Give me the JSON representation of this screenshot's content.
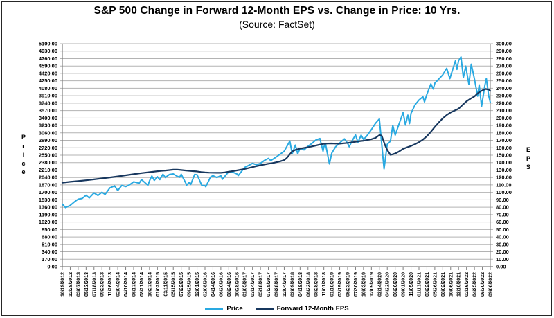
{
  "colors": {
    "price_line": "#29A9E1",
    "eps_line": "#17375E",
    "gridline": "#b3b3b3",
    "axis_line": "#7f7f7f",
    "text": "#000000",
    "border": "#262626",
    "background": "#ffffff"
  },
  "chart_data": {
    "type": "line",
    "title": "S&P 500 Change in Forward 12-Month EPS vs. Change in Price: 10 Yrs.",
    "subtitle": "(Source: FactSet)",
    "grid": true,
    "legend_position": "bottom",
    "left_axis": {
      "label": "Price",
      "min": 0,
      "max": 5100,
      "step": 170
    },
    "right_axis": {
      "label": "EPS",
      "min": 0,
      "max": 300,
      "step": 10
    },
    "x_labels": [
      "10/19/2012",
      "12/28/2012",
      "03/07/2013",
      "05/13/2013",
      "07/18/2013",
      "09/23/2013",
      "11/26/2013",
      "02/04/2014",
      "04/10/2014",
      "06/17/2014",
      "08/21/2014",
      "10/27/2014",
      "01/02/2015",
      "03/11/2015",
      "05/15/2015",
      "07/22/2015",
      "09/25/2015",
      "12/01/2015",
      "02/08/2016",
      "04/14/2016",
      "06/20/2016",
      "08/24/2016",
      "10/28/2016",
      "01/05/2017",
      "03/14/2017",
      "05/18/2017",
      "07/25/2017",
      "09/28/2017",
      "12/04/2017",
      "02/09/2018",
      "04/18/2018",
      "06/22/2018",
      "08/28/2018",
      "11/01/2018",
      "01/10/2019",
      "03/19/2019",
      "05/23/2019",
      "07/30/2019",
      "10/03/2019",
      "12/09/2019",
      "02/14/2020",
      "04/22/2020",
      "06/26/2020",
      "09/01/2020",
      "11/05/2020",
      "01/13/2021",
      "03/22/2021",
      "05/26/2021",
      "08/02/2021",
      "10/06/2021",
      "12/10/2021",
      "02/16/2022",
      "04/25/2022",
      "06/30/2022",
      "09/06/2022"
    ],
    "series": [
      {
        "name": "Price",
        "axis": "left",
        "color": "#29A9E1",
        "width": 2,
        "points": [
          [
            0,
            1433
          ],
          [
            0.4,
            1353
          ],
          [
            1,
            1402
          ],
          [
            1.5,
            1480
          ],
          [
            2,
            1544
          ],
          [
            2.5,
            1560
          ],
          [
            3,
            1634
          ],
          [
            3.4,
            1573
          ],
          [
            4,
            1689
          ],
          [
            4.5,
            1630
          ],
          [
            5,
            1702
          ],
          [
            5.4,
            1655
          ],
          [
            6,
            1803
          ],
          [
            6.6,
            1848
          ],
          [
            7,
            1742
          ],
          [
            7.5,
            1860
          ],
          [
            8,
            1833
          ],
          [
            8.5,
            1875
          ],
          [
            9,
            1942
          ],
          [
            9.4,
            1925
          ],
          [
            9.7,
            1910
          ],
          [
            10,
            1992
          ],
          [
            10.8,
            1862
          ],
          [
            11,
            1962
          ],
          [
            11.3,
            2075
          ],
          [
            11.6,
            1973
          ],
          [
            12,
            2058
          ],
          [
            12.3,
            1993
          ],
          [
            12.7,
            2115
          ],
          [
            13,
            2040
          ],
          [
            13.5,
            2108
          ],
          [
            14,
            2123
          ],
          [
            14.4,
            2077
          ],
          [
            14.8,
            2046
          ],
          [
            15,
            2114
          ],
          [
            15.7,
            1868
          ],
          [
            16,
            1931
          ],
          [
            16.2,
            1882
          ],
          [
            16.7,
            2110
          ],
          [
            17,
            2103
          ],
          [
            17.6,
            1859
          ],
          [
            18,
            1853
          ],
          [
            18.1,
            1829
          ],
          [
            18.7,
            2050
          ],
          [
            19,
            2083
          ],
          [
            19.5,
            2040
          ],
          [
            20,
            2083
          ],
          [
            20.2,
            2001
          ],
          [
            21,
            2175
          ],
          [
            21.5,
            2160
          ],
          [
            22,
            2126
          ],
          [
            22.2,
            2085
          ],
          [
            23,
            2269
          ],
          [
            23.5,
            2316
          ],
          [
            24,
            2365
          ],
          [
            24.5,
            2329
          ],
          [
            25,
            2365
          ],
          [
            25.5,
            2430
          ],
          [
            26,
            2477
          ],
          [
            26.3,
            2426
          ],
          [
            27,
            2510
          ],
          [
            27.5,
            2575
          ],
          [
            28,
            2640
          ],
          [
            28.7,
            2873
          ],
          [
            29,
            2581
          ],
          [
            29.4,
            2780
          ],
          [
            29.7,
            2582
          ],
          [
            30,
            2708
          ],
          [
            30.5,
            2670
          ],
          [
            31,
            2755
          ],
          [
            31.5,
            2821
          ],
          [
            32,
            2898
          ],
          [
            32.5,
            2931
          ],
          [
            32.9,
            2641
          ],
          [
            33,
            2740
          ],
          [
            33.2,
            2814
          ],
          [
            33.7,
            2351
          ],
          [
            34,
            2597
          ],
          [
            34.5,
            2745
          ],
          [
            35,
            2832
          ],
          [
            35.6,
            2924
          ],
          [
            36,
            2822
          ],
          [
            36.2,
            2744
          ],
          [
            36.6,
            2890
          ],
          [
            37,
            3013
          ],
          [
            37.3,
            2845
          ],
          [
            37.7,
            3007
          ],
          [
            38,
            2911
          ],
          [
            38.4,
            2986
          ],
          [
            39,
            3136
          ],
          [
            39.5,
            3275
          ],
          [
            40,
            3380
          ],
          [
            40.6,
            2237
          ],
          [
            41,
            2799
          ],
          [
            41.4,
            2870
          ],
          [
            41.7,
            3232
          ],
          [
            42,
            3009
          ],
          [
            42.5,
            3270
          ],
          [
            43,
            3527
          ],
          [
            43.3,
            3237
          ],
          [
            43.6,
            3465
          ],
          [
            43.8,
            3271
          ],
          [
            44,
            3510
          ],
          [
            44.5,
            3700
          ],
          [
            45,
            3810
          ],
          [
            45.5,
            3886
          ],
          [
            45.7,
            3768
          ],
          [
            46,
            3941
          ],
          [
            46.5,
            4180
          ],
          [
            46.8,
            4063
          ],
          [
            47,
            4196
          ],
          [
            47.5,
            4290
          ],
          [
            48,
            4387
          ],
          [
            48.5,
            4537
          ],
          [
            48.9,
            4300
          ],
          [
            49,
            4364
          ],
          [
            49.6,
            4705
          ],
          [
            49.8,
            4513
          ],
          [
            50,
            4712
          ],
          [
            50.3,
            4797
          ],
          [
            50.6,
            4326
          ],
          [
            50.9,
            4587
          ],
          [
            51,
            4475
          ],
          [
            51.3,
            4171
          ],
          [
            51.6,
            4631
          ],
          [
            52,
            4296
          ],
          [
            52.4,
            3901
          ],
          [
            52.6,
            4158
          ],
          [
            52.9,
            3667
          ],
          [
            53,
            3785
          ],
          [
            53.3,
            4130
          ],
          [
            53.5,
            4305
          ],
          [
            53.8,
            3908
          ],
          [
            54,
            3757
          ]
        ]
      },
      {
        "name": "Forward 12-Month EPS",
        "axis": "right",
        "color": "#17375E",
        "width": 2.2,
        "points": [
          [
            0,
            113
          ],
          [
            1,
            114.2
          ],
          [
            2,
            115.2
          ],
          [
            3,
            116.3
          ],
          [
            4,
            117.5
          ],
          [
            5,
            118.8
          ],
          [
            6,
            120.1
          ],
          [
            7,
            121.5
          ],
          [
            8,
            123
          ],
          [
            9,
            124.5
          ],
          [
            10,
            126
          ],
          [
            11,
            127.2
          ],
          [
            12,
            128.5
          ],
          [
            12.5,
            129
          ],
          [
            13,
            129.4
          ],
          [
            13.5,
            130
          ],
          [
            14,
            130.5
          ],
          [
            14.5,
            130.6
          ],
          [
            15,
            130.1
          ],
          [
            15.5,
            129.5
          ],
          [
            16,
            129
          ],
          [
            16.5,
            128.6
          ],
          [
            17,
            128.2
          ],
          [
            17.5,
            127.4
          ],
          [
            18,
            126.8
          ],
          [
            18.5,
            126.5
          ],
          [
            19,
            126.4
          ],
          [
            19.5,
            126.3
          ],
          [
            20,
            126.3
          ],
          [
            20.5,
            126.9
          ],
          [
            21,
            127.8
          ],
          [
            21.5,
            128.6
          ],
          [
            22,
            129.5
          ],
          [
            22.5,
            130.4
          ],
          [
            23,
            131.5
          ],
          [
            23.5,
            132.7
          ],
          [
            24,
            134
          ],
          [
            24.5,
            135.3
          ],
          [
            25,
            136.5
          ],
          [
            25.5,
            137.5
          ],
          [
            26,
            138.5
          ],
          [
            26.5,
            139.4
          ],
          [
            27,
            140.5
          ],
          [
            27.5,
            141.8
          ],
          [
            28,
            143.5
          ],
          [
            28.3,
            146
          ],
          [
            29,
            155
          ],
          [
            29.5,
            157.5
          ],
          [
            30,
            158.8
          ],
          [
            30.5,
            159.8
          ],
          [
            31,
            160.8
          ],
          [
            31.5,
            161.8
          ],
          [
            32,
            163
          ],
          [
            32.5,
            164.3
          ],
          [
            33,
            165.3
          ],
          [
            33.5,
            165.7
          ],
          [
            34,
            165.8
          ],
          [
            34.5,
            165.6
          ],
          [
            35,
            165.5
          ],
          [
            35.5,
            166
          ],
          [
            36,
            166.5
          ],
          [
            36.5,
            167.2
          ],
          [
            37,
            168
          ],
          [
            37.5,
            168.8
          ],
          [
            38,
            169.5
          ],
          [
            38.5,
            170.5
          ],
          [
            39,
            171.5
          ],
          [
            39.5,
            173.2
          ],
          [
            40,
            177
          ],
          [
            40.3,
            176.3
          ],
          [
            40.7,
            164
          ],
          [
            41,
            157
          ],
          [
            41.4,
            150.5
          ],
          [
            41.7,
            151.2
          ],
          [
            42,
            152.2
          ],
          [
            42.5,
            155
          ],
          [
            43,
            158.5
          ],
          [
            43.5,
            160.5
          ],
          [
            44,
            162.5
          ],
          [
            44.5,
            164.8
          ],
          [
            45,
            167.5
          ],
          [
            45.5,
            171
          ],
          [
            46,
            175.5
          ],
          [
            46.5,
            181.5
          ],
          [
            47,
            188
          ],
          [
            47.5,
            194
          ],
          [
            48,
            199.5
          ],
          [
            48.5,
            204
          ],
          [
            49,
            207.5
          ],
          [
            49.5,
            210
          ],
          [
            50,
            212.5
          ],
          [
            50.5,
            217.5
          ],
          [
            51,
            222.5
          ],
          [
            51.5,
            226
          ],
          [
            52,
            229
          ],
          [
            52.5,
            234
          ],
          [
            53,
            237.2
          ],
          [
            53.4,
            239
          ],
          [
            53.8,
            238.3
          ],
          [
            54,
            236.5
          ]
        ]
      }
    ],
    "legend": [
      {
        "label": "Price",
        "color": "#29A9E1"
      },
      {
        "label": "Forward 12-Month EPS",
        "color": "#17375E"
      }
    ]
  }
}
